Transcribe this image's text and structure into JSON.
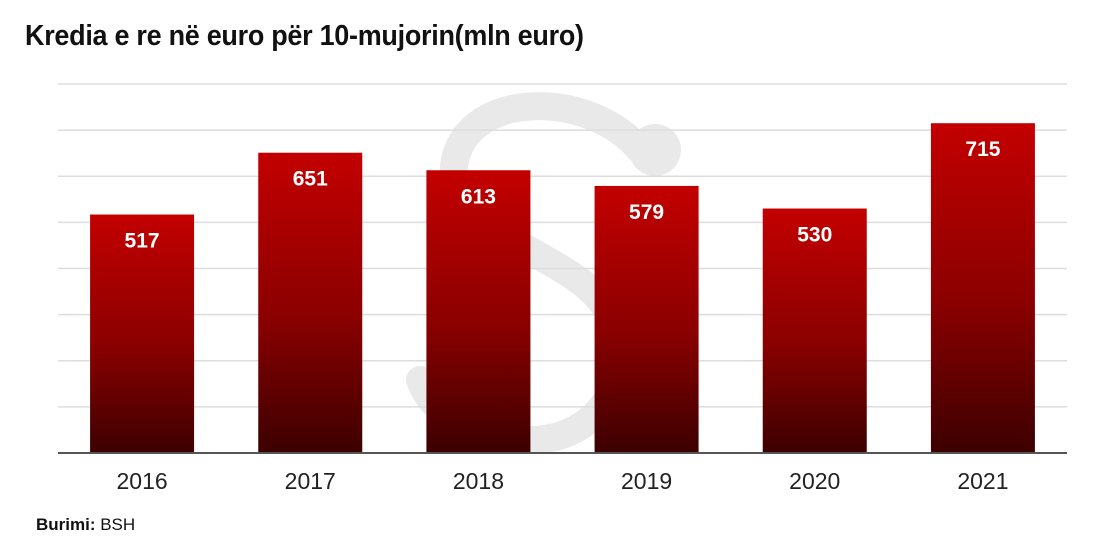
{
  "title": "Kredia e re në euro për 10-mujorin(mln euro)",
  "source": {
    "label": "Burimi:",
    "value": " BSH"
  },
  "colors": {
    "bar_top": "#c30000",
    "bar_bottom": "#3c0000",
    "grid": "#dddddd",
    "axis": "#555555",
    "label": "#ffffff",
    "tick": "#222222",
    "watermark": "#e9e9e9"
  },
  "chart_data": {
    "type": "bar",
    "title": "Kredia e re në euro për 10-mujorin(mln euro)",
    "categories": [
      "2016",
      "2017",
      "2018",
      "2019",
      "2020",
      "2021"
    ],
    "values": [
      517,
      651,
      613,
      579,
      530,
      715
    ],
    "xlabel": "",
    "ylabel": "",
    "ylim": [
      0,
      800
    ],
    "grid": true,
    "data_labels": true,
    "legend": "none"
  }
}
